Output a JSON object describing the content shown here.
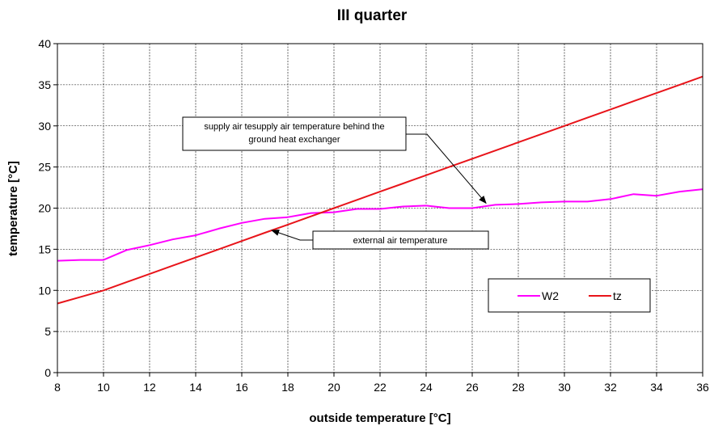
{
  "chart_data": {
    "type": "line",
    "title": "III quarter",
    "xlabel": "outside temperature [°C]",
    "ylabel": "temperature [°C]",
    "xlim": [
      8,
      36
    ],
    "ylim": [
      0,
      40
    ],
    "xticks": [
      "8",
      "10",
      "12",
      "14",
      "16",
      "18",
      "20",
      "22",
      "24",
      "26",
      "28",
      "30",
      "32",
      "34",
      "36"
    ],
    "yticks": [
      "0",
      "5",
      "10",
      "15",
      "20",
      "25",
      "30",
      "35",
      "40"
    ],
    "grid": true,
    "legend_position": "right-middle",
    "series": [
      {
        "name": "W2",
        "color": "#ff00ff",
        "x": [
          8,
          9,
          10,
          11,
          12,
          13,
          14,
          15,
          16,
          17,
          18,
          19,
          20,
          21,
          22,
          23,
          24,
          25,
          26,
          27,
          28,
          29,
          30,
          31,
          32,
          33,
          34,
          35,
          36
        ],
        "y": [
          13.6,
          13.7,
          13.7,
          14.9,
          15.5,
          16.2,
          16.7,
          17.5,
          18.2,
          18.7,
          18.9,
          19.4,
          19.5,
          19.9,
          19.9,
          20.2,
          20.3,
          20.0,
          20.0,
          20.4,
          20.5,
          20.7,
          20.8,
          20.8,
          21.1,
          21.7,
          21.5,
          22.0,
          22.3
        ]
      },
      {
        "name": "tz",
        "color": "#e8141a",
        "x": [
          8,
          9,
          10,
          11,
          12,
          13,
          14,
          15,
          16,
          17,
          18,
          19,
          20,
          21,
          22,
          23,
          24,
          25,
          26,
          27,
          28,
          29,
          30,
          31,
          32,
          33,
          34,
          35,
          36
        ],
        "y": [
          8.4,
          9.2,
          10.0,
          11.0,
          12.0,
          13.0,
          14.0,
          15.0,
          16.0,
          17.0,
          18.0,
          19.0,
          20.0,
          21.0,
          22.0,
          23.0,
          24.0,
          25.0,
          26.0,
          27.0,
          28.0,
          29.0,
          30.0,
          31.0,
          32.0,
          33.0,
          34.0,
          35.0,
          36.0
        ]
      }
    ],
    "annotations": [
      {
        "lines": [
          "supply air tesupply air temperature behind the",
          "ground heat exchanger"
        ],
        "x": 26.6,
        "y": 20.6
      },
      {
        "lines": [
          "external air temperature"
        ],
        "x": 17.3,
        "y": 17.3
      }
    ]
  }
}
